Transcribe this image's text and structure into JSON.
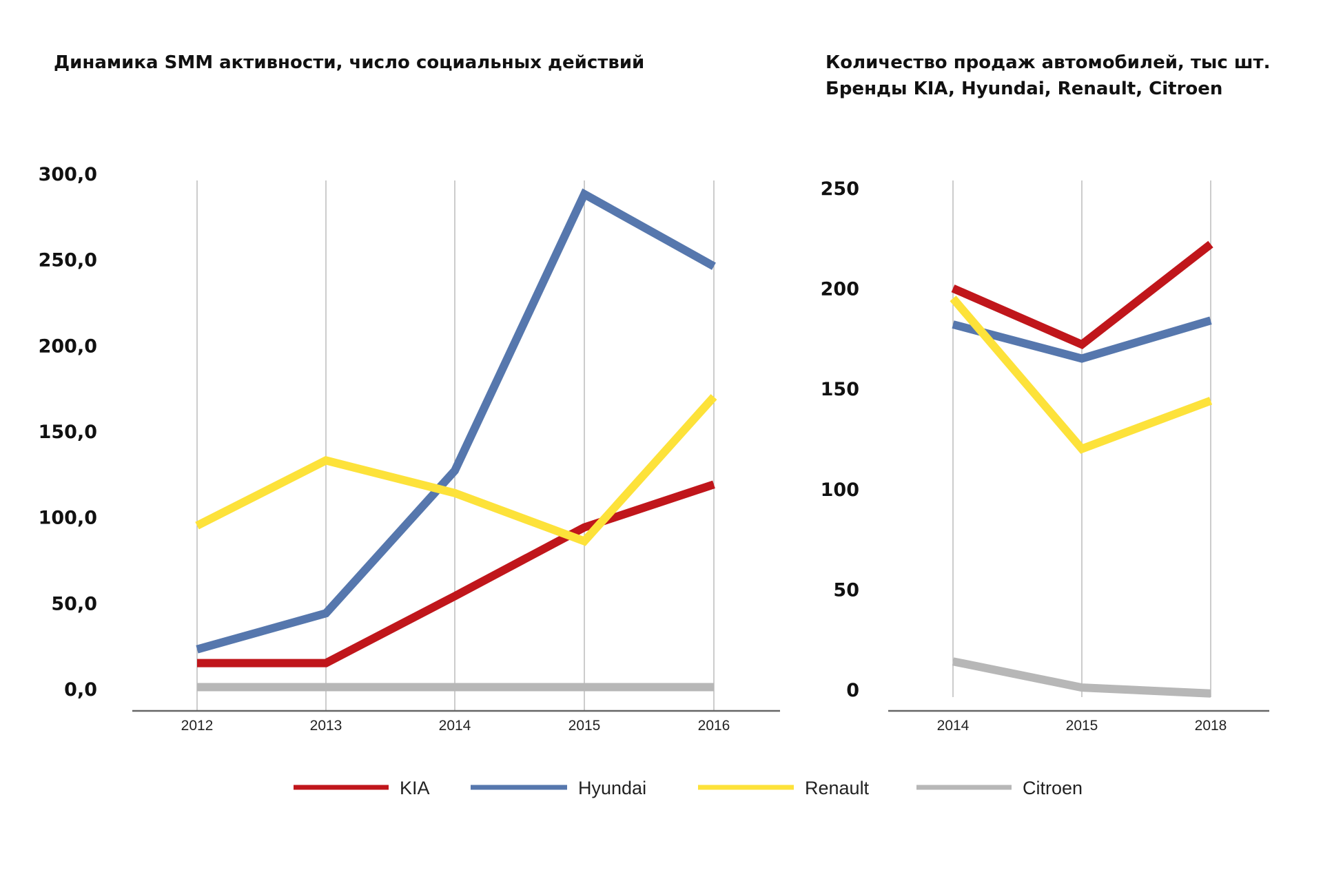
{
  "colors": {
    "KIA": "#c0161b",
    "Hyundai": "#5677ad",
    "Renault": "#fde23a",
    "Citroen": "#b7b7b7",
    "gridline": "#aaaaaa",
    "axis": "#666666"
  },
  "legend": [
    "KIA",
    "Hyundai",
    "Renault",
    "Citroen"
  ],
  "chart_data": [
    {
      "type": "line",
      "title": "Динамика SMM активности, число социальных действий",
      "x": [
        "2012",
        "2013",
        "2014",
        "2015",
        "2016"
      ],
      "yticks": [
        "0,0",
        "50,0",
        "100,0",
        "150,0",
        "200,0",
        "250,0",
        "300,0"
      ],
      "ylim": [
        0,
        300
      ],
      "grid": "vertical",
      "legend_position": "bottom",
      "series": [
        {
          "name": "KIA",
          "values": [
            15,
            15,
            54,
            94,
            119
          ]
        },
        {
          "name": "Hyundai",
          "values": [
            23,
            44,
            127,
            288,
            246
          ]
        },
        {
          "name": "Renault",
          "values": [
            95,
            133,
            114,
            86,
            170
          ]
        },
        {
          "name": "Citroen",
          "values": [
            1,
            1,
            1,
            1,
            1
          ]
        }
      ]
    },
    {
      "type": "line",
      "title": [
        "Количество продаж автомобилей, тыс шт.",
        "Бренды KIA, Hyundai, Renault, Citroen"
      ],
      "x": [
        "2014",
        "2015",
        "2018"
      ],
      "yticks": [
        "0",
        "50",
        "100",
        "150",
        "200",
        "250"
      ],
      "ylim": [
        0,
        250
      ],
      "grid": "vertical",
      "legend_position": "bottom",
      "series": [
        {
          "name": "KIA",
          "values": [
            200,
            172,
            222
          ]
        },
        {
          "name": "Hyundai",
          "values": [
            182,
            165,
            184
          ]
        },
        {
          "name": "Renault",
          "values": [
            195,
            120,
            144
          ]
        },
        {
          "name": "Citroen",
          "values": [
            14,
            1,
            -2
          ]
        }
      ]
    }
  ]
}
